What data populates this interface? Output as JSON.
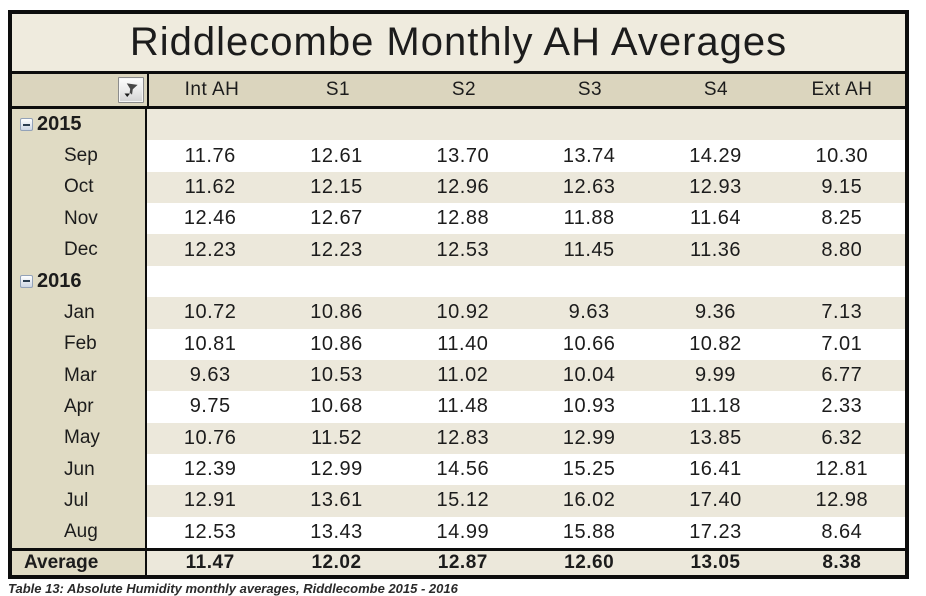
{
  "title": "Riddlecombe Monthly AH Averages",
  "caption": "Table 13: Absolute Humidity monthly averages, Riddlecombe 2015 - 2016",
  "header": {
    "filter_icon": "funnel-icon",
    "columns": [
      "Int AH",
      "S1",
      "S2",
      "S3",
      "S4",
      "Ext AH"
    ]
  },
  "groups": [
    {
      "year": "2015",
      "collapsed": false,
      "collapse_icon": "minus-box-icon",
      "rows": [
        {
          "month": "Sep",
          "values": [
            "11.76",
            "12.61",
            "13.70",
            "13.74",
            "14.29",
            "10.30"
          ]
        },
        {
          "month": "Oct",
          "values": [
            "11.62",
            "12.15",
            "12.96",
            "12.63",
            "12.93",
            "9.15"
          ]
        },
        {
          "month": "Nov",
          "values": [
            "12.46",
            "12.67",
            "12.88",
            "11.88",
            "11.64",
            "8.25"
          ]
        },
        {
          "month": "Dec",
          "values": [
            "12.23",
            "12.23",
            "12.53",
            "11.45",
            "11.36",
            "8.80"
          ]
        }
      ]
    },
    {
      "year": "2016",
      "collapsed": false,
      "collapse_icon": "minus-box-icon",
      "rows": [
        {
          "month": "Jan",
          "values": [
            "10.72",
            "10.86",
            "10.92",
            "9.63",
            "9.36",
            "7.13"
          ]
        },
        {
          "month": "Feb",
          "values": [
            "10.81",
            "10.86",
            "11.40",
            "10.66",
            "10.82",
            "7.01"
          ]
        },
        {
          "month": "Mar",
          "values": [
            "9.63",
            "10.53",
            "11.02",
            "10.04",
            "9.99",
            "6.77"
          ]
        },
        {
          "month": "Apr",
          "values": [
            "9.75",
            "10.68",
            "11.48",
            "10.93",
            "11.18",
            "2.33"
          ]
        },
        {
          "month": "May",
          "values": [
            "10.76",
            "11.52",
            "12.83",
            "12.99",
            "13.85",
            "6.32"
          ]
        },
        {
          "month": "Jun",
          "values": [
            "12.39",
            "12.99",
            "14.56",
            "15.25",
            "16.41",
            "12.81"
          ]
        },
        {
          "month": "Jul",
          "values": [
            "12.91",
            "13.61",
            "15.12",
            "16.02",
            "17.40",
            "12.98"
          ]
        },
        {
          "month": "Aug",
          "values": [
            "12.53",
            "13.43",
            "14.99",
            "15.88",
            "17.23",
            "8.64"
          ]
        }
      ]
    }
  ],
  "average_row": {
    "label": "Average",
    "values": [
      "11.47",
      "12.02",
      "12.87",
      "12.60",
      "13.05",
      "8.38"
    ]
  },
  "colors": {
    "title_bg": "#EFEBDE",
    "header_bg": "#DBD5BE",
    "label_bg": "#E0DBC4",
    "stripe_bg": "#ECE8DB",
    "row_bg": "#FFFFFF",
    "border": "#0D0D0D",
    "text": "#1C1C1C"
  }
}
